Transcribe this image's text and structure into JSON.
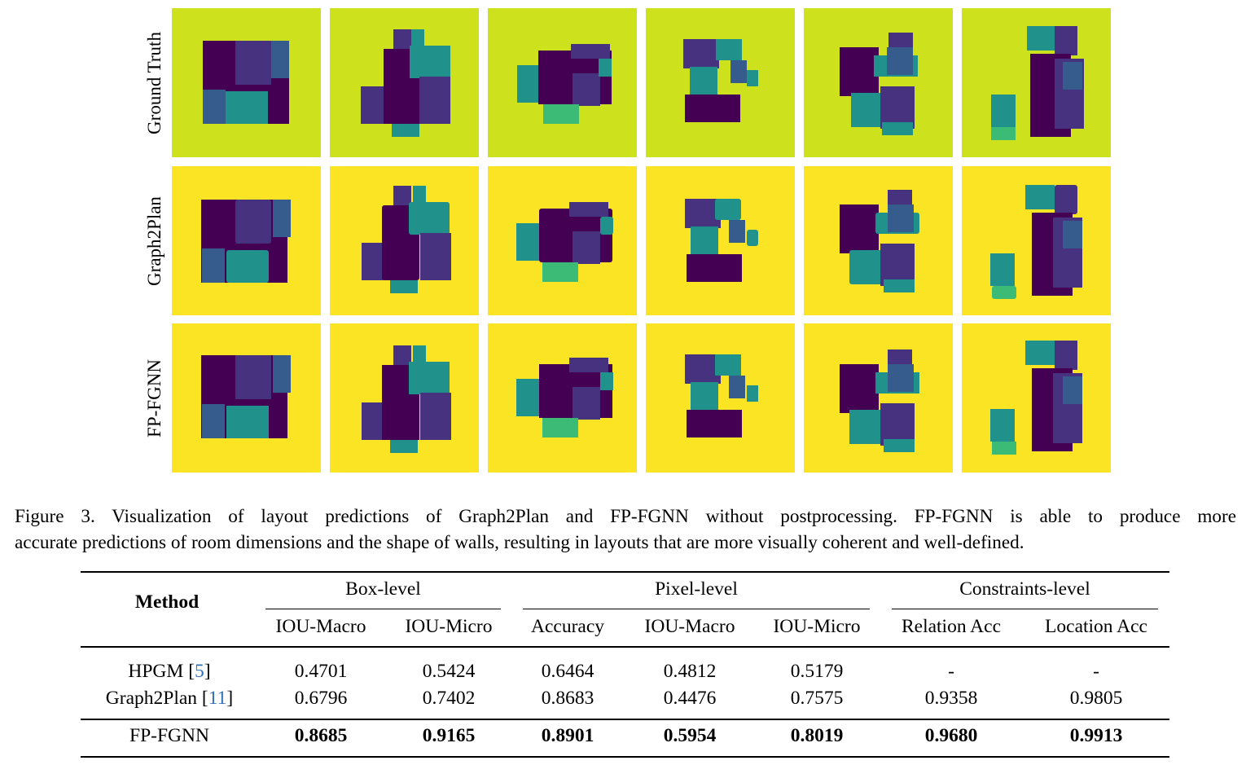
{
  "figure": {
    "row_labels": [
      "Ground Truth",
      "Graph2Plan",
      "FP-FGNN"
    ],
    "colors": {
      "ground_truth_bg": "#cde11d",
      "prediction_bg": "#fbe423",
      "room_dark": "#440154",
      "room_purple": "#46327e",
      "room_blue": "#365c8d",
      "room_teal": "#21918c",
      "room_green": "#3bbb75"
    }
  },
  "caption": {
    "line1": "Figure 3.  Visualization of layout predictions of Graph2Plan and FP-FGNN without postprocessing.  FP-FGNN is able to produce more",
    "line2": "accurate predictions of room dimensions and the shape of walls, resulting in layouts that are more visually coherent and well-defined."
  },
  "table": {
    "method_header": "Method",
    "groups": [
      "Box-level",
      "Pixel-level",
      "Constraints-level"
    ],
    "columns": [
      "IOU-Macro",
      "IOU-Micro",
      "Accuracy",
      "IOU-Macro",
      "IOU-Micro",
      "Relation Acc",
      "Location Acc"
    ],
    "rows": [
      {
        "method": "HPGM",
        "cite": "5",
        "values": [
          "0.4701",
          "0.5424",
          "0.6464",
          "0.4812",
          "0.5179",
          "-",
          "-"
        ]
      },
      {
        "method": "Graph2Plan",
        "cite": "11",
        "values": [
          "0.6796",
          "0.7402",
          "0.8683",
          "0.4476",
          "0.7575",
          "0.9358",
          "0.9805"
        ]
      },
      {
        "method": "FP-FGNN",
        "cite": "",
        "values": [
          "0.8685",
          "0.9165",
          "0.8901",
          "0.5954",
          "0.8019",
          "0.9680",
          "0.9913"
        ]
      }
    ]
  }
}
